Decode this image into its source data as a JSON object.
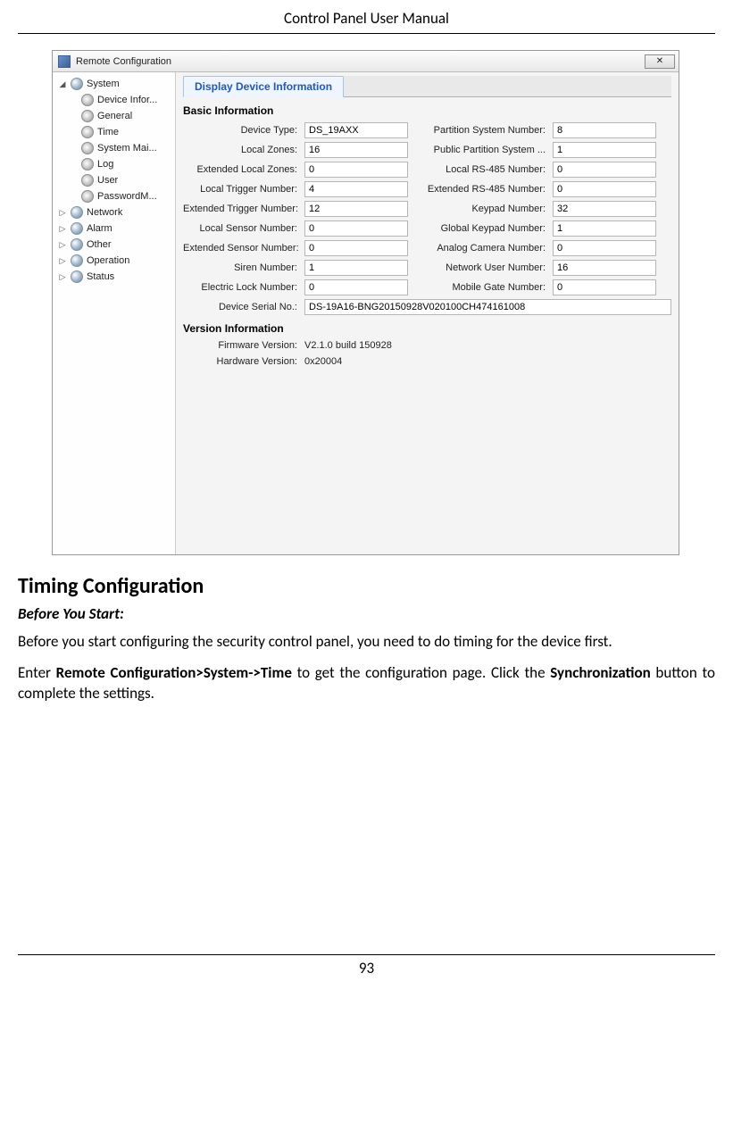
{
  "doc": {
    "header": "Control Panel User Manual",
    "page_number": "93",
    "section_heading": "Timing Configuration",
    "subheading": "Before You Start:",
    "para1": "Before you start configuring the security control panel, you need to do timing for the device first.",
    "para2_pre": "Enter ",
    "para2_bold1": "Remote Configuration>System->Time",
    "para2_mid": " to get the configuration page. Click the ",
    "para2_bold2": "Synchronization",
    "para2_post": " button to complete the settings."
  },
  "window": {
    "title": "Remote Configuration",
    "close": "✕",
    "tab": "Display Device Information",
    "section_basic": "Basic Information",
    "section_version": "Version Information",
    "fields": {
      "device_type": {
        "label": "Device Type:",
        "value": "DS_19AXX"
      },
      "partition_system_number": {
        "label": "Partition System Number:",
        "value": "8"
      },
      "local_zones": {
        "label": "Local Zones:",
        "value": "16"
      },
      "public_partition": {
        "label": "Public Partition System ...",
        "value": "1"
      },
      "ext_local_zones": {
        "label": "Extended Local Zones:",
        "value": "0"
      },
      "local_rs485": {
        "label": "Local RS-485 Number:",
        "value": "0"
      },
      "local_trigger": {
        "label": "Local Trigger Number:",
        "value": "4"
      },
      "ext_rs485": {
        "label": "Extended RS-485 Number:",
        "value": "0"
      },
      "ext_trigger": {
        "label": "Extended Trigger Number:",
        "value": "12"
      },
      "keypad": {
        "label": "Keypad Number:",
        "value": "32"
      },
      "local_sensor": {
        "label": "Local Sensor Number:",
        "value": "0"
      },
      "global_keypad": {
        "label": "Global Keypad Number:",
        "value": "1"
      },
      "ext_sensor": {
        "label": "Extended Sensor Number:",
        "value": "0"
      },
      "analog_camera": {
        "label": "Analog Camera Number:",
        "value": "0"
      },
      "siren": {
        "label": "Siren Number:",
        "value": "1"
      },
      "net_user": {
        "label": "Network User Number:",
        "value": "16"
      },
      "elock": {
        "label": "Electric Lock Number:",
        "value": "0"
      },
      "mobile_gate": {
        "label": "Mobile Gate Number:",
        "value": "0"
      },
      "serial": {
        "label": "Device Serial No.:",
        "value": "DS-19A16-BNG20150928V020100CH474161008"
      }
    },
    "version": {
      "fw": {
        "label": "Firmware Version:",
        "value": "V2.1.0 build 150928"
      },
      "hw": {
        "label": "Hardware Version:",
        "value": "0x20004"
      }
    }
  },
  "tree": {
    "system": "System",
    "device_info": "Device Infor...",
    "general": "General",
    "time": "Time",
    "system_mai": "System Mai...",
    "log": "Log",
    "user": "User",
    "passwordm": "PasswordM...",
    "network": "Network",
    "alarm": "Alarm",
    "other": "Other",
    "operation": "Operation",
    "status": "Status"
  }
}
